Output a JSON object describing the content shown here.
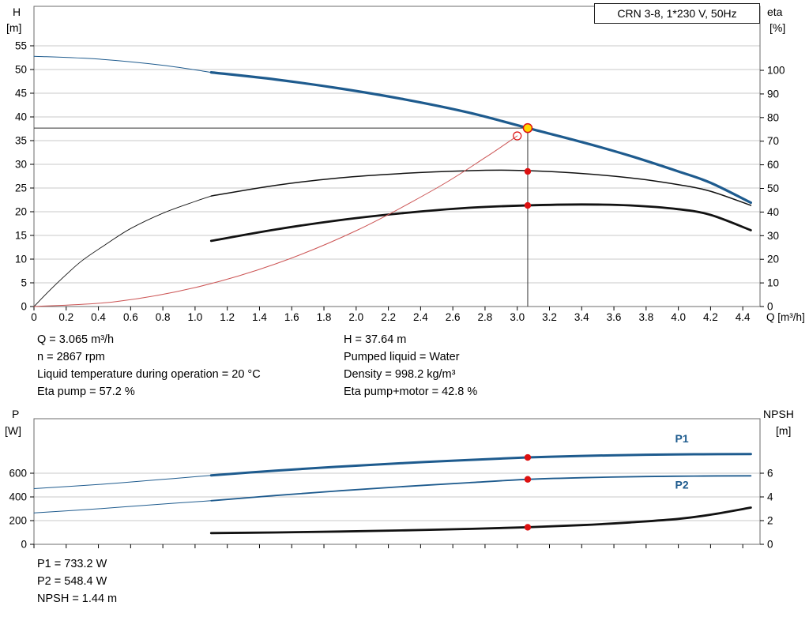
{
  "title_box": {
    "label": "CRN 3-8, 1*230 V, 50Hz"
  },
  "colors": {
    "curve_blue": "#1e5b8e",
    "curve_red": "#cc5555",
    "curve_black": "#121212",
    "marker_red": "#dd1111",
    "marker_yellow": "#ffd800",
    "grid": "#c9c9c9",
    "frame": "#6b6b6b",
    "ref_line": "#333333"
  },
  "annotations": {
    "left": [
      "Q = 3.065 m³/h",
      "n = 2867 rpm",
      "Liquid temperature during operation = 20 °C",
      "Eta pump = 57.2 %"
    ],
    "right": [
      "H = 37.64 m",
      "Pumped liquid = Water",
      "Density = 998.2 kg/m³",
      "Eta pump+motor = 42.8 %"
    ],
    "bottom": [
      "P1 = 733.2 W",
      "P2 = 548.4 W",
      "NPSH = 1.44 m"
    ]
  },
  "chart_data": [
    {
      "type": "line",
      "name": "qh-performance-chart",
      "x_axis": {
        "label": "Q [m³/h]",
        "range": [
          0,
          4.507
        ],
        "ticks": {
          "min": 0,
          "max": 4.4,
          "step": 0.2,
          "decimals": 1
        },
        "show_labels": true
      },
      "scales": {
        "H": {
          "range": [
            0,
            63.33
          ]
        },
        "ETA": {
          "range": [
            0,
            127.1
          ]
        }
      },
      "left_axis": {
        "scale": "H",
        "title": [
          "H",
          "[m]"
        ],
        "ticks": {
          "min": 0,
          "max": 55,
          "step": 5,
          "decimals": 0
        }
      },
      "right_axis": {
        "scale": "ETA",
        "title": [
          "eta",
          "[%]"
        ],
        "ticks": {
          "min": 0,
          "max": 100,
          "step": 10,
          "decimals": 0
        }
      },
      "series": [
        {
          "name": "head-curve-low-flow",
          "scale": "H",
          "color": "blue",
          "width": 1,
          "points": [
            [
              0,
              52.8
            ],
            [
              0.4,
              52.2
            ],
            [
              0.8,
              50.9
            ],
            [
              1.1,
              49.4
            ]
          ]
        },
        {
          "name": "head-curve",
          "scale": "H",
          "color": "blue",
          "width": 3.2,
          "points": [
            [
              1.1,
              49.4
            ],
            [
              1.5,
              47.9
            ],
            [
              1.9,
              46.0
            ],
            [
              2.3,
              43.7
            ],
            [
              2.7,
              40.9
            ],
            [
              3.065,
              37.64
            ],
            [
              3.4,
              34.7
            ],
            [
              3.7,
              31.8
            ],
            [
              4.0,
              28.5
            ],
            [
              4.2,
              26.1
            ],
            [
              4.45,
              21.9
            ]
          ]
        },
        {
          "name": "eta-pump-curve-low-flow",
          "scale": "ETA",
          "color": "black",
          "width": 0.9,
          "points": [
            [
              0,
              0
            ],
            [
              0.1,
              7
            ],
            [
              0.2,
              13.5
            ],
            [
              0.3,
              19.5
            ],
            [
              0.45,
              26.5
            ],
            [
              0.6,
              33
            ],
            [
              0.8,
              39.5
            ],
            [
              1.0,
              44.5
            ],
            [
              1.1,
              46.8
            ]
          ]
        },
        {
          "name": "eta-pump-curve",
          "scale": "ETA",
          "color": "black",
          "width": 1.5,
          "points": [
            [
              1.1,
              46.8
            ],
            [
              1.5,
              51.3
            ],
            [
              1.9,
              54.5
            ],
            [
              2.3,
              56.4
            ],
            [
              2.7,
              57.5
            ],
            [
              2.95,
              57.7
            ],
            [
              3.3,
              56.8
            ],
            [
              3.7,
              54.5
            ],
            [
              4.0,
              51.6
            ],
            [
              4.2,
              48.8
            ],
            [
              4.45,
              42.8
            ]
          ]
        },
        {
          "name": "eta-pump-motor-curve",
          "scale": "ETA",
          "color": "black",
          "width": 2.8,
          "points": [
            [
              1.1,
              27.8
            ],
            [
              1.5,
              32.6
            ],
            [
              1.9,
              36.6
            ],
            [
              2.3,
              39.6
            ],
            [
              2.7,
              41.8
            ],
            [
              3.065,
              42.8
            ],
            [
              3.4,
              43.2
            ],
            [
              3.7,
              42.8
            ],
            [
              4.0,
              41.2
            ],
            [
              4.2,
              38.8
            ],
            [
              4.45,
              32.3
            ]
          ]
        },
        {
          "name": "system-resistance-curve",
          "scale": "H",
          "color": "red",
          "width": 1,
          "points": [
            [
              0,
              0
            ],
            [
              0.5,
              1.0
            ],
            [
              1.0,
              4.0
            ],
            [
              1.5,
              9.0
            ],
            [
              2.0,
              16.0
            ],
            [
              2.5,
              25.0
            ],
            [
              2.8,
              31.4
            ],
            [
              3.0,
              36.0
            ]
          ]
        }
      ],
      "ref_lines": [
        {
          "name": "duty-flow-line",
          "dir": "v",
          "scale": "H",
          "q": 3.065,
          "v0": 0,
          "v1": 37.64
        },
        {
          "name": "duty-head-line",
          "dir": "h",
          "scale": "H",
          "v": 37.64,
          "q0": 0,
          "q1": 3.065
        }
      ],
      "markers": [
        {
          "name": "requested-duty-point",
          "shape": "open",
          "scale": "H",
          "q": 3.0,
          "v": 36.0,
          "r": 5,
          "interactable": true
        },
        {
          "name": "duty-point",
          "shape": "duty",
          "scale": "H",
          "q": 3.065,
          "v": 37.64,
          "r": 5.5,
          "interactable": true
        },
        {
          "name": "eta-pump-point",
          "shape": "dot",
          "scale": "ETA",
          "q": 3.065,
          "v": 57.2,
          "r": 4.2,
          "interactable": false
        },
        {
          "name": "eta-pump-motor-point",
          "shape": "dot",
          "scale": "ETA",
          "q": 3.065,
          "v": 42.8,
          "r": 4.2,
          "interactable": false
        }
      ]
    },
    {
      "type": "line",
      "name": "power-npsh-chart",
      "x_axis": {
        "label": "",
        "range": [
          0,
          4.507
        ],
        "ticks": {
          "min": 0,
          "max": 4.4,
          "step": 0.2,
          "decimals": 1
        },
        "show_labels": false
      },
      "scales": {
        "P": {
          "range": [
            0,
            1060
          ]
        },
        "N": {
          "range": [
            0,
            10.6
          ]
        }
      },
      "left_axis": {
        "scale": "P",
        "title": [
          "P",
          "[W]"
        ],
        "ticks": {
          "min": 0,
          "max": 600,
          "step": 200,
          "decimals": 0
        }
      },
      "right_axis": {
        "scale": "N",
        "title": [
          "NPSH",
          "[m]"
        ],
        "ticks": {
          "min": 0,
          "max": 6,
          "step": 2,
          "decimals": 0
        }
      },
      "series": [
        {
          "name": "p1-curve-low-flow",
          "scale": "P",
          "color": "blue",
          "width": 1,
          "points": [
            [
              0,
              470
            ],
            [
              0.4,
              505
            ],
            [
              0.8,
              548
            ],
            [
              1.1,
              582
            ]
          ]
        },
        {
          "name": "p1-curve",
          "scale": "P",
          "color": "blue",
          "width": 3,
          "points": [
            [
              1.1,
              582
            ],
            [
              1.5,
              622
            ],
            [
              1.9,
              656
            ],
            [
              2.3,
              686
            ],
            [
              2.7,
              712
            ],
            [
              3.065,
              733.2
            ],
            [
              3.4,
              746
            ],
            [
              3.8,
              756
            ],
            [
              4.1,
              760
            ],
            [
              4.45,
              762
            ]
          ],
          "label": "P1",
          "label_q": 3.98,
          "label_v": 860
        },
        {
          "name": "p2-curve-low-flow",
          "scale": "P",
          "color": "blue",
          "width": 1,
          "points": [
            [
              0,
              265
            ],
            [
              0.4,
              300
            ],
            [
              0.8,
              340
            ],
            [
              1.1,
              368
            ]
          ]
        },
        {
          "name": "p2-curve",
          "scale": "P",
          "color": "blue",
          "width": 1.8,
          "points": [
            [
              1.1,
              368
            ],
            [
              1.5,
              412
            ],
            [
              1.9,
              452
            ],
            [
              2.3,
              488
            ],
            [
              2.7,
              520
            ],
            [
              3.065,
              548.4
            ],
            [
              3.4,
              562
            ],
            [
              3.8,
              572
            ],
            [
              4.1,
              576
            ],
            [
              4.45,
              578
            ]
          ],
          "label": "P2",
          "label_q": 3.98,
          "label_v": 470
        },
        {
          "name": "npsh-curve",
          "scale": "N",
          "color": "black",
          "width": 2.8,
          "points": [
            [
              1.1,
              0.95
            ],
            [
              1.5,
              1.0
            ],
            [
              1.9,
              1.08
            ],
            [
              2.3,
              1.18
            ],
            [
              2.7,
              1.3
            ],
            [
              3.065,
              1.44
            ],
            [
              3.4,
              1.62
            ],
            [
              3.7,
              1.85
            ],
            [
              4.0,
              2.15
            ],
            [
              4.2,
              2.5
            ],
            [
              4.45,
              3.1
            ]
          ]
        }
      ],
      "ref_lines": [],
      "markers": [
        {
          "name": "p1-point",
          "shape": "dot",
          "scale": "P",
          "q": 3.065,
          "v": 733.2,
          "r": 4.2,
          "interactable": false
        },
        {
          "name": "p2-point",
          "shape": "dot",
          "scale": "P",
          "q": 3.065,
          "v": 548.4,
          "r": 4.2,
          "interactable": false
        },
        {
          "name": "npsh-point",
          "shape": "dot",
          "scale": "N",
          "q": 3.065,
          "v": 1.44,
          "r": 4.2,
          "interactable": false
        }
      ]
    }
  ]
}
